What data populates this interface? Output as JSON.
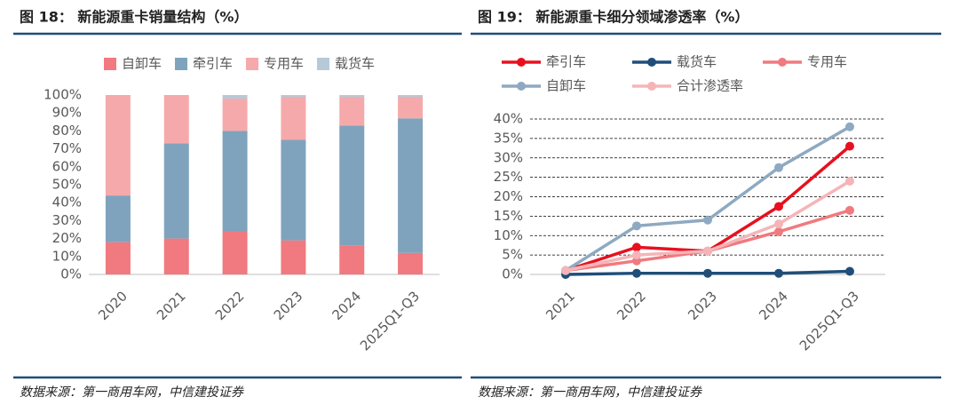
{
  "chart_data": [
    {
      "type": "stacked-bar",
      "title": "图 18：  新能源重卡销量结构（%）",
      "source": "数据来源：第一商用车网，中信建投证券",
      "categories": [
        "2020",
        "2021",
        "2022",
        "2023",
        "2024",
        "2025Q1-Q3"
      ],
      "series": [
        {
          "name": "自卸车",
          "color": "#f07a7f",
          "values": [
            18,
            20,
            24,
            19,
            16,
            12
          ]
        },
        {
          "name": "牵引车",
          "color": "#7fa3bd",
          "values": [
            26,
            53,
            56,
            56,
            67,
            75
          ]
        },
        {
          "name": "专用车",
          "color": "#f6a9ab",
          "values": [
            56,
            27,
            18,
            24,
            16,
            12
          ]
        },
        {
          "name": "载货车",
          "color": "#b7c9d6",
          "values": [
            0,
            0,
            2,
            1,
            1,
            1
          ]
        }
      ],
      "ylim": [
        0,
        100
      ],
      "yticks": [
        {
          "value": 0,
          "label": "0%"
        },
        {
          "value": 10,
          "label": "10%"
        },
        {
          "value": 20,
          "label": "20%"
        },
        {
          "value": 30,
          "label": "30%"
        },
        {
          "value": 40,
          "label": "40%"
        },
        {
          "value": 50,
          "label": "50%"
        },
        {
          "value": 60,
          "label": "60%"
        },
        {
          "value": 70,
          "label": "70%"
        },
        {
          "value": 80,
          "label": "80%"
        },
        {
          "value": 90,
          "label": "90%"
        },
        {
          "value": 100,
          "label": "100%"
        }
      ],
      "grid": false
    },
    {
      "type": "line",
      "title": "图 19：  新能源重卡细分领域渗透率（%）",
      "source": "数据来源：第一商用车网，中信建投证券",
      "categories": [
        "2021",
        "2022",
        "2023",
        "2024",
        "2025Q1-Q3"
      ],
      "series": [
        {
          "name": "牵引车",
          "color": "#e8101e",
          "values": [
            1,
            7,
            6,
            17.5,
            33
          ]
        },
        {
          "name": "载货车",
          "color": "#1f4e79",
          "values": [
            0,
            0.3,
            0.3,
            0.3,
            0.8
          ]
        },
        {
          "name": "专用车",
          "color": "#f07a7f",
          "values": [
            1,
            3.5,
            6,
            11,
            16.5
          ]
        },
        {
          "name": "自卸车",
          "color": "#8ea9c1",
          "values": [
            1,
            12.5,
            14,
            27.5,
            38
          ]
        },
        {
          "name": "合计渗透率",
          "color": "#f5b5b8",
          "values": [
            1,
            5,
            6,
            13,
            24
          ]
        }
      ],
      "ylim": [
        0,
        40
      ],
      "yticks": [
        {
          "value": 0,
          "label": "0%"
        },
        {
          "value": 5,
          "label": "5%"
        },
        {
          "value": 10,
          "label": "10%"
        },
        {
          "value": 15,
          "label": "15%"
        },
        {
          "value": 20,
          "label": "20%"
        },
        {
          "value": 25,
          "label": "25%"
        },
        {
          "value": 30,
          "label": "30%"
        },
        {
          "value": 35,
          "label": "35%"
        },
        {
          "value": 40,
          "label": "40%"
        }
      ],
      "grid": true
    }
  ]
}
